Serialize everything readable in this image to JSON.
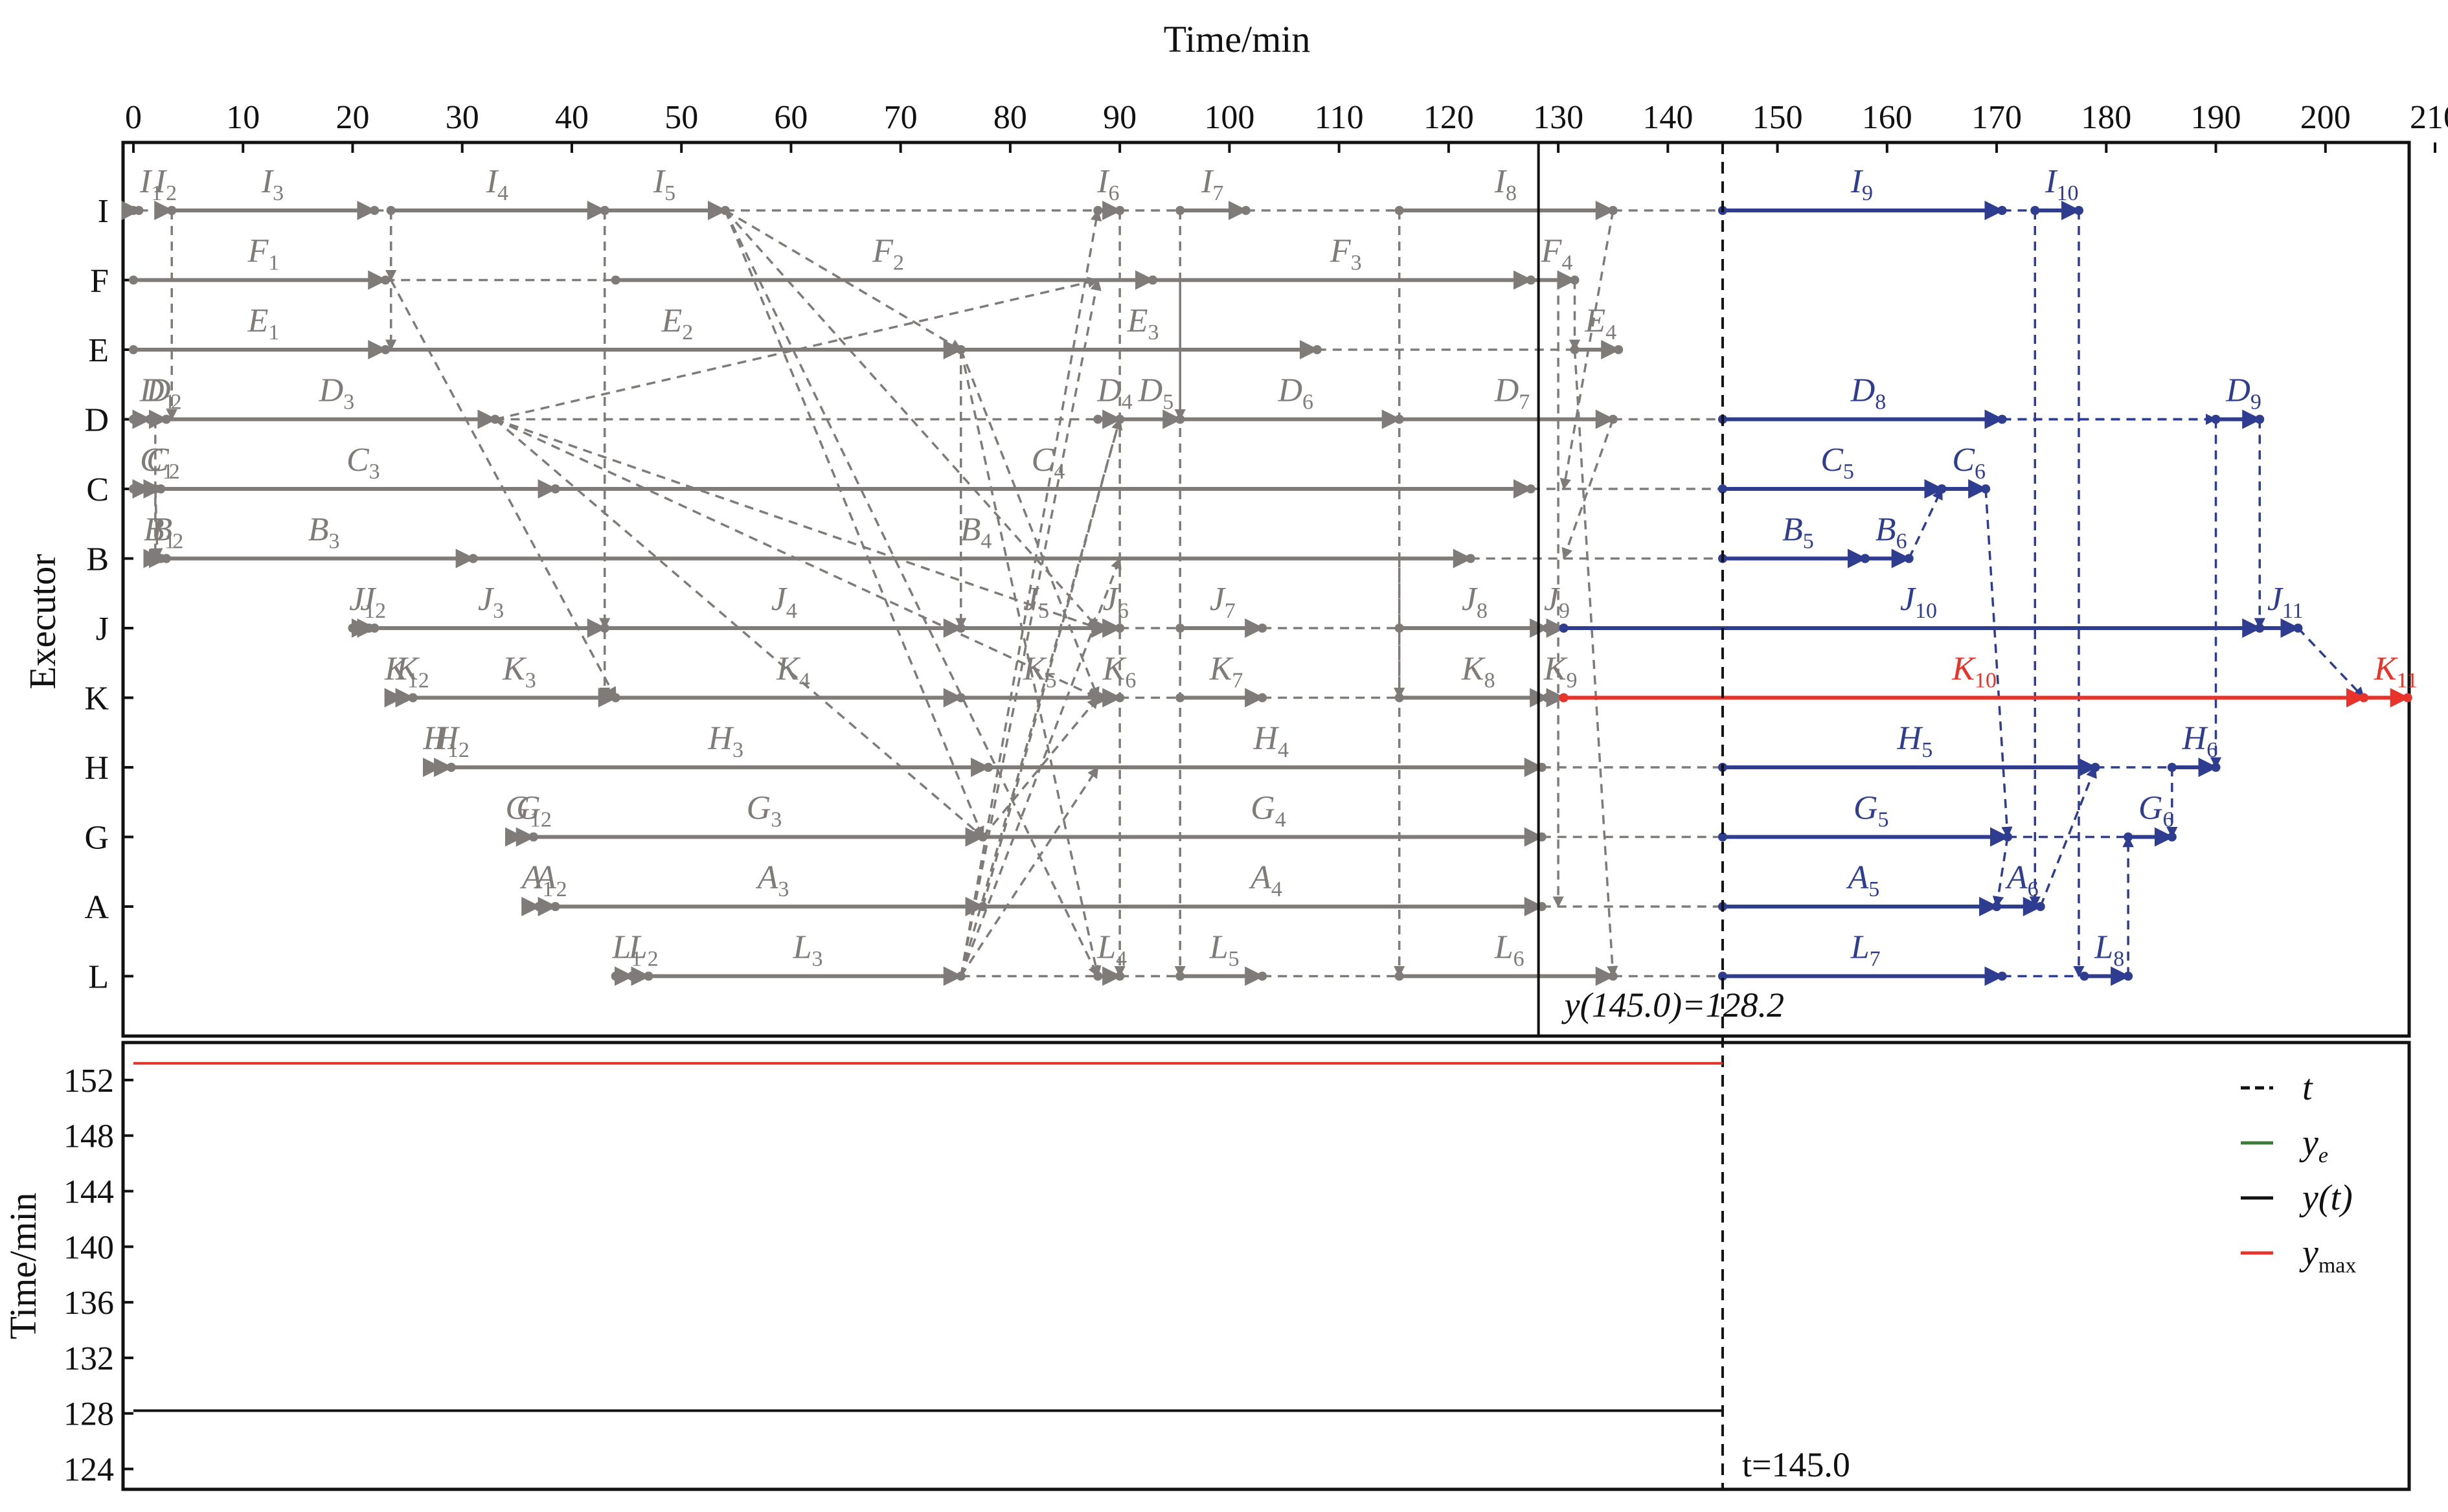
{
  "chart_data": [
    {
      "type": "gantt",
      "xlabel": "Time/min",
      "ylabel": "Executor",
      "xlim": [
        0,
        210
      ],
      "xticks": [
        0,
        10,
        20,
        30,
        40,
        50,
        60,
        70,
        80,
        90,
        100,
        110,
        120,
        130,
        140,
        150,
        160,
        170,
        180,
        190,
        200,
        210
      ],
      "executors": [
        "I",
        "F",
        "E",
        "D",
        "C",
        "B",
        "J",
        "K",
        "H",
        "G",
        "A",
        "L"
      ],
      "colors": {
        "completed": "#7f7b79",
        "planned": "#2e3d8f",
        "critical": "#e8332a",
        "frame": "#111111"
      },
      "now_line": {
        "t": 145.0,
        "label": "t=145.0"
      },
      "progress_line": {
        "x": 128.2,
        "label": "y(145.0)=128.2"
      },
      "tasks": [
        {
          "executor": "I",
          "segments": [
            {
              "label": "I",
              "sub": "1",
              "start": 0,
              "end": 0.5,
              "state": "completed"
            },
            {
              "label": "I",
              "sub": "2",
              "start": 2.5,
              "end": 3.5,
              "state": "completed"
            },
            {
              "label": "I",
              "sub": "3",
              "start": 3.5,
              "end": 22,
              "state": "completed"
            },
            {
              "label": "I",
              "sub": "4",
              "start": 23.5,
              "end": 43,
              "state": "completed"
            },
            {
              "label": "I",
              "sub": "5",
              "start": 43,
              "end": 54,
              "state": "completed"
            },
            {
              "label": "I",
              "sub": "6",
              "start": 88,
              "end": 90,
              "state": "completed"
            },
            {
              "label": "I",
              "sub": "7",
              "start": 95.5,
              "end": 101.5,
              "state": "completed"
            },
            {
              "label": "I",
              "sub": "8",
              "start": 115.5,
              "end": 135,
              "state": "completed"
            },
            {
              "label": "I",
              "sub": "9",
              "start": 145,
              "end": 170.5,
              "state": "planned"
            },
            {
              "label": "I",
              "sub": "10",
              "start": 173.5,
              "end": 177.5,
              "state": "planned"
            }
          ]
        },
        {
          "executor": "F",
          "segments": [
            {
              "label": "F",
              "sub": "1",
              "start": 0,
              "end": 23,
              "state": "completed"
            },
            {
              "label": "F",
              "sub": "2",
              "start": 44,
              "end": 93,
              "state": "completed"
            },
            {
              "label": "F",
              "sub": "3",
              "start": 93,
              "end": 127.5,
              "state": "completed"
            },
            {
              "label": "F",
              "sub": "4",
              "start": 127.5,
              "end": 131.5,
              "state": "completed"
            }
          ]
        },
        {
          "executor": "E",
          "segments": [
            {
              "label": "E",
              "sub": "1",
              "start": 0,
              "end": 23,
              "state": "completed"
            },
            {
              "label": "E",
              "sub": "2",
              "start": 23,
              "end": 75.5,
              "state": "completed"
            },
            {
              "label": "E",
              "sub": "3",
              "start": 75.5,
              "end": 108,
              "state": "completed"
            },
            {
              "label": "E",
              "sub": "4",
              "start": 131.5,
              "end": 135.5,
              "state": "completed"
            }
          ]
        },
        {
          "executor": "D",
          "segments": [
            {
              "label": "D",
              "sub": "1",
              "start": 0,
              "end": 1.5,
              "state": "completed"
            },
            {
              "label": "D",
              "sub": "2",
              "start": 1.5,
              "end": 3,
              "state": "completed"
            },
            {
              "label": "D",
              "sub": "3",
              "start": 3,
              "end": 33,
              "state": "completed"
            },
            {
              "label": "D",
              "sub": "4",
              "start": 88,
              "end": 90,
              "state": "completed"
            },
            {
              "label": "D",
              "sub": "5",
              "start": 90,
              "end": 95.5,
              "state": "completed"
            },
            {
              "label": "D",
              "sub": "6",
              "start": 95.5,
              "end": 115.5,
              "state": "completed"
            },
            {
              "label": "D",
              "sub": "7",
              "start": 115.5,
              "end": 135,
              "state": "completed"
            },
            {
              "label": "D",
              "sub": "8",
              "start": 145,
              "end": 170.5,
              "state": "planned"
            },
            {
              "label": "D",
              "sub": "9",
              "start": 190,
              "end": 194,
              "state": "planned"
            }
          ]
        },
        {
          "executor": "C",
          "segments": [
            {
              "label": "C",
              "sub": "1",
              "start": 0,
              "end": 1.5,
              "state": "completed"
            },
            {
              "label": "C",
              "sub": "2",
              "start": 2,
              "end": 2.5,
              "state": "completed"
            },
            {
              "label": "C",
              "sub": "3",
              "start": 2.5,
              "end": 38.5,
              "state": "completed"
            },
            {
              "label": "C",
              "sub": "4",
              "start": 38.5,
              "end": 127.5,
              "state": "completed"
            },
            {
              "label": "C",
              "sub": "5",
              "start": 145,
              "end": 165,
              "state": "planned"
            },
            {
              "label": "C",
              "sub": "6",
              "start": 165,
              "end": 169,
              "state": "planned"
            }
          ]
        },
        {
          "executor": "B",
          "segments": [
            {
              "label": "B",
              "sub": "1",
              "start": 1.5,
              "end": 2.5,
              "state": "completed"
            },
            {
              "label": "B",
              "sub": "2",
              "start": 2.5,
              "end": 3,
              "state": "completed"
            },
            {
              "label": "B",
              "sub": "3",
              "start": 3,
              "end": 31,
              "state": "completed"
            },
            {
              "label": "B",
              "sub": "4",
              "start": 31,
              "end": 122,
              "state": "completed"
            },
            {
              "label": "B",
              "sub": "5",
              "start": 145,
              "end": 158,
              "state": "planned"
            },
            {
              "label": "B",
              "sub": "6",
              "start": 158,
              "end": 162,
              "state": "planned"
            }
          ]
        },
        {
          "executor": "J",
          "segments": [
            {
              "label": "J",
              "sub": "1",
              "start": 20,
              "end": 21.5,
              "state": "completed"
            },
            {
              "label": "J",
              "sub": "2",
              "start": 21.5,
              "end": 22,
              "state": "completed"
            },
            {
              "label": "J",
              "sub": "3",
              "start": 22,
              "end": 43,
              "state": "completed"
            },
            {
              "label": "J",
              "sub": "4",
              "start": 43,
              "end": 75.5,
              "state": "completed"
            },
            {
              "label": "J",
              "sub": "5",
              "start": 75.5,
              "end": 89,
              "state": "completed"
            },
            {
              "label": "J",
              "sub": "6",
              "start": 89,
              "end": 90,
              "state": "completed"
            },
            {
              "label": "J",
              "sub": "7",
              "start": 95.5,
              "end": 103,
              "state": "completed"
            },
            {
              "label": "J",
              "sub": "8",
              "start": 115.5,
              "end": 129,
              "state": "completed"
            },
            {
              "label": "J",
              "sub": "9",
              "start": 129,
              "end": 130.5,
              "state": "completed"
            },
            {
              "label": "J",
              "sub": "10",
              "start": 130.5,
              "end": 194,
              "state": "planned"
            },
            {
              "label": "J",
              "sub": "11",
              "start": 194,
              "end": 197.5,
              "state": "planned"
            }
          ]
        },
        {
          "executor": "K",
          "segments": [
            {
              "label": "K",
              "sub": "1",
              "start": 23.5,
              "end": 24.5,
              "state": "completed"
            },
            {
              "label": "K",
              "sub": "2",
              "start": 24.5,
              "end": 25.5,
              "state": "completed"
            },
            {
              "label": "K",
              "sub": "3",
              "start": 25.5,
              "end": 44,
              "state": "completed"
            },
            {
              "label": "K",
              "sub": "4",
              "start": 44,
              "end": 75.5,
              "state": "completed"
            },
            {
              "label": "K",
              "sub": "5",
              "start": 75.5,
              "end": 89,
              "state": "completed"
            },
            {
              "label": "K",
              "sub": "6",
              "start": 89,
              "end": 90,
              "state": "completed"
            },
            {
              "label": "K",
              "sub": "7",
              "start": 95.5,
              "end": 103,
              "state": "completed"
            },
            {
              "label": "K",
              "sub": "8",
              "start": 115.5,
              "end": 129,
              "state": "completed"
            },
            {
              "label": "K",
              "sub": "9",
              "start": 129,
              "end": 130.5,
              "state": "completed"
            },
            {
              "label": "K",
              "sub": "10",
              "start": 130.5,
              "end": 203.5,
              "state": "critical"
            },
            {
              "label": "K",
              "sub": "11",
              "start": 203.5,
              "end": 207.5,
              "state": "critical"
            }
          ]
        },
        {
          "executor": "H",
          "segments": [
            {
              "label": "H",
              "sub": "1",
              "start": 27,
              "end": 28,
              "state": "completed"
            },
            {
              "label": "H",
              "sub": "2",
              "start": 28,
              "end": 29,
              "state": "completed"
            },
            {
              "label": "H",
              "sub": "3",
              "start": 29,
              "end": 78,
              "state": "completed"
            },
            {
              "label": "H",
              "sub": "4",
              "start": 78,
              "end": 128.5,
              "state": "completed"
            },
            {
              "label": "H",
              "sub": "5",
              "start": 145,
              "end": 179,
              "state": "planned"
            },
            {
              "label": "H",
              "sub": "6",
              "start": 186,
              "end": 190,
              "state": "planned"
            }
          ]
        },
        {
          "executor": "G",
          "segments": [
            {
              "label": "G",
              "sub": "1",
              "start": 34.5,
              "end": 35.5,
              "state": "completed"
            },
            {
              "label": "G",
              "sub": "2",
              "start": 35.5,
              "end": 36.5,
              "state": "completed"
            },
            {
              "label": "G",
              "sub": "3",
              "start": 36.5,
              "end": 77.5,
              "state": "completed"
            },
            {
              "label": "G",
              "sub": "4",
              "start": 77.5,
              "end": 128.5,
              "state": "completed"
            },
            {
              "label": "G",
              "sub": "5",
              "start": 145,
              "end": 171,
              "state": "planned"
            },
            {
              "label": "G",
              "sub": "6",
              "start": 182,
              "end": 186,
              "state": "planned"
            }
          ]
        },
        {
          "executor": "A",
          "segments": [
            {
              "label": "A",
              "sub": "1",
              "start": 36,
              "end": 37,
              "state": "completed"
            },
            {
              "label": "A",
              "sub": "2",
              "start": 37,
              "end": 38.5,
              "state": "completed"
            },
            {
              "label": "A",
              "sub": "3",
              "start": 38.5,
              "end": 77.5,
              "state": "completed"
            },
            {
              "label": "A",
              "sub": "4",
              "start": 77.5,
              "end": 128.5,
              "state": "completed"
            },
            {
              "label": "A",
              "sub": "5",
              "start": 145,
              "end": 170,
              "state": "planned"
            },
            {
              "label": "A",
              "sub": "6",
              "start": 170,
              "end": 174,
              "state": "planned"
            }
          ]
        },
        {
          "executor": "L",
          "segments": [
            {
              "label": "L",
              "sub": "1",
              "start": 44,
              "end": 45.5,
              "state": "completed"
            },
            {
              "label": "L",
              "sub": "2",
              "start": 45.5,
              "end": 47,
              "state": "completed"
            },
            {
              "label": "L",
              "sub": "3",
              "start": 47,
              "end": 75.5,
              "state": "completed"
            },
            {
              "label": "L",
              "sub": "4",
              "start": 88,
              "end": 90,
              "state": "completed"
            },
            {
              "label": "L",
              "sub": "5",
              "start": 95.5,
              "end": 103,
              "state": "completed"
            },
            {
              "label": "L",
              "sub": "6",
              "start": 115.5,
              "end": 135,
              "state": "completed"
            },
            {
              "label": "L",
              "sub": "7",
              "start": 145,
              "end": 170.5,
              "state": "planned"
            },
            {
              "label": "L",
              "sub": "8",
              "start": 178,
              "end": 182,
              "state": "planned"
            }
          ]
        }
      ]
    },
    {
      "type": "line",
      "ylabel": "Time/min",
      "xlim": [
        0,
        210
      ],
      "ylim": [
        123,
        154
      ],
      "yticks": [
        124,
        128,
        132,
        136,
        140,
        144,
        148,
        152
      ],
      "legend_position": "top-right",
      "legend": [
        {
          "name": "t",
          "sub": "",
          "color": "#111111",
          "style": "dashed"
        },
        {
          "name": "y",
          "sub": "e",
          "color": "#3a7a3a",
          "style": "solid"
        },
        {
          "name": "y(t)",
          "sub": "",
          "color": "#111111",
          "style": "solid"
        },
        {
          "name": "y",
          "sub": "max",
          "color": "#e8332a",
          "style": "solid"
        }
      ],
      "series": [
        {
          "key": "y_max",
          "color": "#e8332a",
          "x": [
            0,
            145
          ],
          "y": [
            153.2,
            153.2
          ]
        },
        {
          "key": "y_t",
          "color": "#111111",
          "x": [
            0,
            145
          ],
          "y": [
            128.2,
            128.2
          ]
        }
      ],
      "vline": {
        "x": 145,
        "label": "t=145.0"
      }
    }
  ]
}
